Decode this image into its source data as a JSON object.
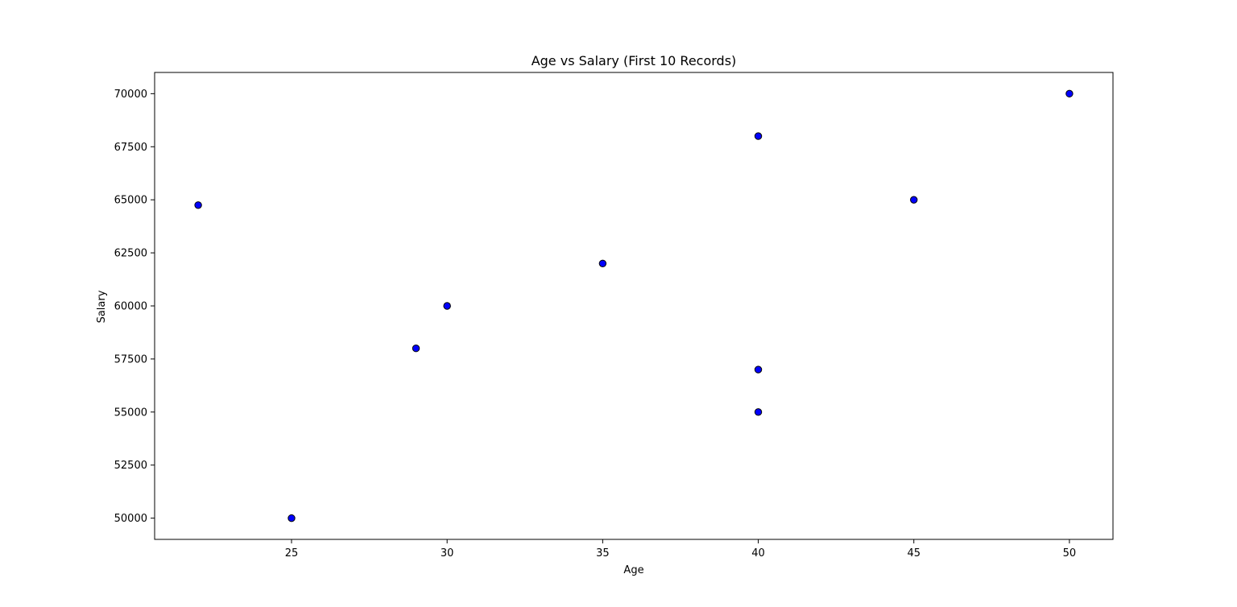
{
  "chart_data": {
    "type": "scatter",
    "title": "Age vs Salary (First 10 Records)",
    "xlabel": "Age",
    "ylabel": "Salary",
    "xlim": [
      20.6,
      51.4
    ],
    "ylim": [
      49000,
      71000
    ],
    "xticks": [
      25,
      30,
      35,
      40,
      45,
      50
    ],
    "yticks": [
      50000,
      52500,
      55000,
      57500,
      60000,
      62500,
      65000,
      67500,
      70000
    ],
    "grid": false,
    "marker_color": "#0000ff",
    "marker_edge_color": "#000000",
    "points": [
      {
        "x": 22,
        "y": 64750
      },
      {
        "x": 25,
        "y": 50000
      },
      {
        "x": 29,
        "y": 58000
      },
      {
        "x": 30,
        "y": 60000
      },
      {
        "x": 35,
        "y": 62000
      },
      {
        "x": 40,
        "y": 68000
      },
      {
        "x": 40,
        "y": 57000
      },
      {
        "x": 40,
        "y": 55000
      },
      {
        "x": 45,
        "y": 65000
      },
      {
        "x": 50,
        "y": 70000
      }
    ]
  }
}
